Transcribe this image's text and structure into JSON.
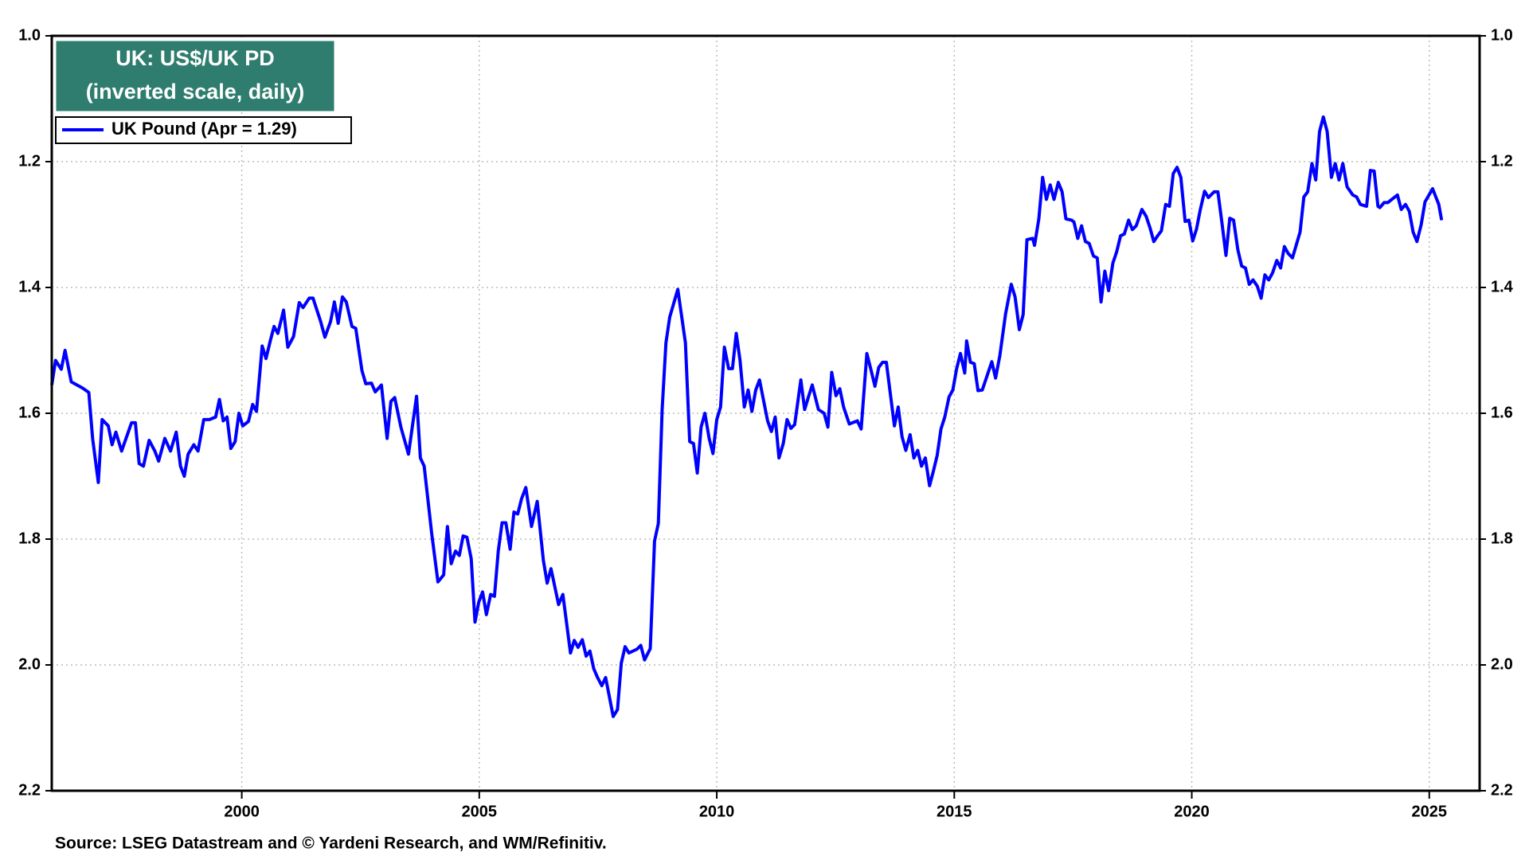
{
  "chart_data": {
    "type": "line",
    "title": "UK: US$/UK PD",
    "subtitle": "(inverted scale, daily)",
    "source": "Source: LSEG Datastream and © Yardeni Research, and WM/Refinitiv.",
    "x": [
      1996.0,
      1996.08,
      1996.2,
      1996.28,
      1996.41,
      1996.65,
      1996.78,
      1996.86,
      1996.98,
      1997.06,
      1997.19,
      1997.27,
      1997.35,
      1997.47,
      1997.68,
      1997.76,
      1997.84,
      1997.93,
      1998.05,
      1998.17,
      1998.25,
      1998.38,
      1998.5,
      1998.62,
      1998.71,
      1998.79,
      1998.87,
      1998.99,
      1999.08,
      1999.2,
      1999.32,
      1999.45,
      1999.53,
      1999.61,
      1999.69,
      1999.77,
      1999.86,
      1999.94,
      2000.02,
      2000.14,
      2000.23,
      2000.31,
      2000.43,
      2000.51,
      2000.6,
      2000.68,
      2000.76,
      2000.88,
      2000.97,
      2001.09,
      2001.21,
      2001.29,
      2001.42,
      2001.5,
      2001.66,
      2001.75,
      2001.87,
      2001.95,
      2002.03,
      2002.12,
      2002.2,
      2002.32,
      2002.4,
      2002.53,
      2002.61,
      2002.73,
      2002.81,
      2002.94,
      2003.06,
      2003.14,
      2003.22,
      2003.35,
      2003.51,
      2003.68,
      2003.76,
      2003.84,
      2004.0,
      2004.13,
      2004.25,
      2004.33,
      2004.41,
      2004.5,
      2004.58,
      2004.66,
      2004.74,
      2004.83,
      2004.91,
      2004.99,
      2005.07,
      2005.15,
      2005.24,
      2005.32,
      2005.4,
      2005.48,
      2005.56,
      2005.65,
      2005.73,
      2005.81,
      2005.89,
      2005.98,
      2006.1,
      2006.22,
      2006.35,
      2006.43,
      2006.51,
      2006.67,
      2006.76,
      2006.92,
      2007.0,
      2007.08,
      2007.17,
      2007.25,
      2007.33,
      2007.41,
      2007.49,
      2007.58,
      2007.66,
      2007.74,
      2007.82,
      2007.91,
      2007.99,
      2008.07,
      2008.15,
      2008.32,
      2008.4,
      2008.48,
      2008.6,
      2008.69,
      2008.77,
      2008.85,
      2008.93,
      2009.01,
      2009.18,
      2009.34,
      2009.43,
      2009.51,
      2009.59,
      2009.67,
      2009.75,
      2009.84,
      2009.92,
      2010.0,
      2010.08,
      2010.16,
      2010.25,
      2010.33,
      2010.41,
      2010.49,
      2010.58,
      2010.66,
      2010.74,
      2010.82,
      2010.9,
      2011.07,
      2011.15,
      2011.23,
      2011.31,
      2011.4,
      2011.48,
      2011.56,
      2011.64,
      2011.77,
      2011.85,
      2011.93,
      2012.01,
      2012.14,
      2012.26,
      2012.34,
      2012.42,
      2012.51,
      2012.59,
      2012.67,
      2012.79,
      2012.96,
      2013.04,
      2013.16,
      2013.24,
      2013.33,
      2013.41,
      2013.49,
      2013.57,
      2013.74,
      2013.82,
      2013.9,
      2013.98,
      2014.07,
      2014.15,
      2014.23,
      2014.31,
      2014.39,
      2014.48,
      2014.56,
      2014.64,
      2014.72,
      2014.8,
      2014.89,
      2014.97,
      2015.05,
      2015.13,
      2015.22,
      2015.26,
      2015.34,
      2015.42,
      2015.5,
      2015.59,
      2015.71,
      2015.79,
      2015.87,
      2015.96,
      2016.08,
      2016.2,
      2016.28,
      2016.37,
      2016.45,
      2016.53,
      2016.65,
      2016.69,
      2016.78,
      2016.86,
      2016.94,
      2017.02,
      2017.1,
      2017.19,
      2017.27,
      2017.35,
      2017.47,
      2017.52,
      2017.6,
      2017.68,
      2017.76,
      2017.84,
      2017.93,
      2018.01,
      2018.09,
      2018.17,
      2018.25,
      2018.34,
      2018.42,
      2018.5,
      2018.58,
      2018.67,
      2018.75,
      2018.83,
      2018.95,
      2019.04,
      2019.12,
      2019.2,
      2019.28,
      2019.36,
      2019.45,
      2019.53,
      2019.61,
      2019.69,
      2019.77,
      2019.86,
      2019.94,
      2020.02,
      2020.1,
      2020.18,
      2020.27,
      2020.35,
      2020.47,
      2020.55,
      2020.64,
      2020.72,
      2020.8,
      2020.88,
      2020.97,
      2021.05,
      2021.13,
      2021.21,
      2021.29,
      2021.38,
      2021.46,
      2021.54,
      2021.62,
      2021.7,
      2021.79,
      2021.87,
      2021.95,
      2022.03,
      2022.12,
      2022.28,
      2022.36,
      2022.44,
      2022.53,
      2022.61,
      2022.69,
      2022.77,
      2022.85,
      2022.94,
      2023.02,
      2023.1,
      2023.18,
      2023.27,
      2023.39,
      2023.47,
      2023.55,
      2023.68,
      2023.76,
      2023.84,
      2023.92,
      2023.96,
      2024.05,
      2024.13,
      2024.21,
      2024.33,
      2024.41,
      2024.5,
      2024.58,
      2024.66,
      2024.74,
      2024.83,
      2024.91,
      2025.07,
      2025.2,
      2025.26
    ],
    "series": [
      {
        "name": "UK Pound (Apr = 1.29)",
        "color": "#0000ff",
        "values": [
          1.555,
          1.516,
          1.53,
          1.5,
          1.55,
          1.56,
          1.567,
          1.64,
          1.71,
          1.61,
          1.62,
          1.65,
          1.63,
          1.66,
          1.615,
          1.615,
          1.68,
          1.684,
          1.643,
          1.66,
          1.676,
          1.64,
          1.66,
          1.63,
          1.684,
          1.7,
          1.665,
          1.65,
          1.66,
          1.61,
          1.61,
          1.606,
          1.578,
          1.612,
          1.606,
          1.656,
          1.645,
          1.6,
          1.62,
          1.613,
          1.586,
          1.597,
          1.493,
          1.513,
          1.485,
          1.462,
          1.473,
          1.436,
          1.495,
          1.478,
          1.424,
          1.432,
          1.417,
          1.417,
          1.454,
          1.479,
          1.454,
          1.423,
          1.457,
          1.415,
          1.423,
          1.462,
          1.465,
          1.532,
          1.553,
          1.552,
          1.566,
          1.555,
          1.64,
          1.581,
          1.575,
          1.622,
          1.665,
          1.573,
          1.671,
          1.684,
          1.792,
          1.868,
          1.857,
          1.78,
          1.839,
          1.819,
          1.826,
          1.795,
          1.797,
          1.831,
          1.932,
          1.9,
          1.884,
          1.92,
          1.888,
          1.891,
          1.819,
          1.774,
          1.774,
          1.816,
          1.757,
          1.76,
          1.736,
          1.718,
          1.78,
          1.74,
          1.834,
          1.87,
          1.847,
          1.904,
          1.888,
          1.981,
          1.961,
          1.972,
          1.96,
          1.986,
          1.978,
          2.006,
          2.02,
          2.033,
          2.02,
          2.051,
          2.082,
          2.071,
          1.997,
          1.971,
          1.981,
          1.975,
          1.969,
          1.992,
          1.974,
          1.803,
          1.775,
          1.594,
          1.488,
          1.447,
          1.403,
          1.488,
          1.645,
          1.648,
          1.695,
          1.622,
          1.6,
          1.64,
          1.664,
          1.61,
          1.59,
          1.495,
          1.529,
          1.529,
          1.473,
          1.516,
          1.59,
          1.563,
          1.597,
          1.563,
          1.547,
          1.612,
          1.629,
          1.606,
          1.671,
          1.648,
          1.61,
          1.624,
          1.618,
          1.547,
          1.594,
          1.574,
          1.555,
          1.594,
          1.6,
          1.622,
          1.535,
          1.572,
          1.561,
          1.59,
          1.617,
          1.612,
          1.625,
          1.505,
          1.529,
          1.557,
          1.527,
          1.519,
          1.519,
          1.62,
          1.59,
          1.637,
          1.659,
          1.634,
          1.671,
          1.659,
          1.684,
          1.671,
          1.715,
          1.692,
          1.667,
          1.625,
          1.606,
          1.574,
          1.563,
          1.529,
          1.505,
          1.536,
          1.485,
          1.519,
          1.521,
          1.564,
          1.563,
          1.536,
          1.518,
          1.544,
          1.508,
          1.442,
          1.395,
          1.415,
          1.467,
          1.443,
          1.324,
          1.322,
          1.333,
          1.291,
          1.225,
          1.26,
          1.237,
          1.26,
          1.233,
          1.248,
          1.291,
          1.293,
          1.296,
          1.322,
          1.302,
          1.327,
          1.33,
          1.35,
          1.353,
          1.423,
          1.374,
          1.405,
          1.361,
          1.343,
          1.318,
          1.315,
          1.293,
          1.308,
          1.302,
          1.276,
          1.287,
          1.305,
          1.327,
          1.318,
          1.31,
          1.268,
          1.271,
          1.219,
          1.209,
          1.225,
          1.295,
          1.293,
          1.326,
          1.307,
          1.276,
          1.247,
          1.257,
          1.248,
          1.248,
          1.3,
          1.349,
          1.29,
          1.293,
          1.34,
          1.366,
          1.369,
          1.395,
          1.388,
          1.398,
          1.417,
          1.38,
          1.388,
          1.377,
          1.357,
          1.369,
          1.335,
          1.346,
          1.353,
          1.312,
          1.256,
          1.248,
          1.203,
          1.229,
          1.152,
          1.129,
          1.152,
          1.225,
          1.203,
          1.229,
          1.203,
          1.24,
          1.253,
          1.256,
          1.268,
          1.271,
          1.214,
          1.215,
          1.271,
          1.273,
          1.265,
          1.265,
          1.26,
          1.253,
          1.276,
          1.268,
          1.279,
          1.312,
          1.327,
          1.3,
          1.264,
          1.243,
          1.268,
          1.293
        ]
      }
    ],
    "xlim": [
      1996.0,
      2026.06
    ],
    "xticks": [
      2000,
      2005,
      2010,
      2015,
      2020,
      2025
    ],
    "ylim": [
      2.2,
      1.0
    ],
    "yticks": [
      {
        "value": 1,
        "label": "1.0"
      },
      1.2,
      1.4,
      1.6,
      1.8,
      {
        "value": 2,
        "label": "2.0"
      },
      2.2
    ],
    "grid": true,
    "legend": "upper left",
    "title_box_color": "#2e7d6e"
  }
}
